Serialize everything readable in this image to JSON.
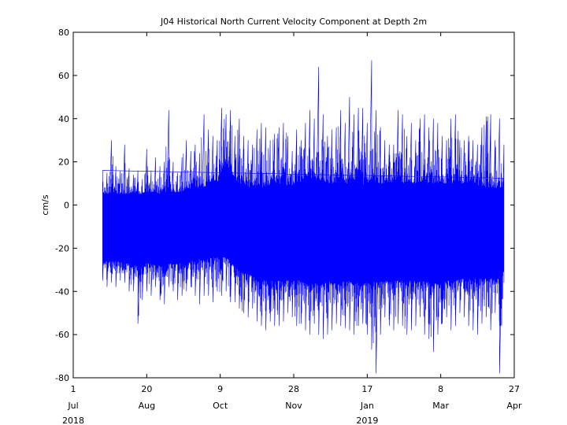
{
  "chart_data": {
    "type": "line",
    "title": "J04 Historical North Current Velocity Component at Depth 2m",
    "ylabel": "cm/s",
    "xlabel": "",
    "ylim": [
      -80,
      80
    ],
    "yticks": [
      -80,
      -60,
      -40,
      -20,
      0,
      20,
      40,
      60,
      80
    ],
    "xlim": [
      "2018-07-01",
      "2019-04-27"
    ],
    "grid": false,
    "xticks": [
      {
        "date": "2018-07-01",
        "day": "1",
        "month": "Jul",
        "year": "2018"
      },
      {
        "date": "2018-08-20",
        "day": "20",
        "month": "Aug",
        "year": ""
      },
      {
        "date": "2018-10-09",
        "day": "9",
        "month": "Oct",
        "year": ""
      },
      {
        "date": "2018-11-28",
        "day": "28",
        "month": "Nov",
        "year": ""
      },
      {
        "date": "2019-01-17",
        "day": "17",
        "month": "Jan",
        "year": "2019"
      },
      {
        "date": "2019-03-08",
        "day": "8",
        "month": "Mar",
        "year": ""
      },
      {
        "date": "2019-04-27",
        "day": "27",
        "month": "Apr",
        "year": ""
      }
    ],
    "series": [
      {
        "color": "#0000ff",
        "resolution": "envelope at ~3-day intervals; underlying data is a dense high-frequency time series",
        "x": [
          "2018-07-21",
          "2018-07-24",
          "2018-07-27",
          "2018-07-30",
          "2018-08-02",
          "2018-08-05",
          "2018-08-08",
          "2018-08-11",
          "2018-08-14",
          "2018-08-17",
          "2018-08-20",
          "2018-08-23",
          "2018-08-26",
          "2018-08-29",
          "2018-09-01",
          "2018-09-04",
          "2018-09-07",
          "2018-09-10",
          "2018-09-13",
          "2018-09-16",
          "2018-09-19",
          "2018-09-22",
          "2018-09-25",
          "2018-09-28",
          "2018-10-01",
          "2018-10-04",
          "2018-10-07",
          "2018-10-10",
          "2018-10-13",
          "2018-10-16",
          "2018-10-19",
          "2018-10-22",
          "2018-10-25",
          "2018-10-28",
          "2018-10-31",
          "2018-11-03",
          "2018-11-06",
          "2018-11-09",
          "2018-11-12",
          "2018-11-15",
          "2018-11-18",
          "2018-11-21",
          "2018-11-24",
          "2018-11-27",
          "2018-11-30",
          "2018-12-03",
          "2018-12-06",
          "2018-12-09",
          "2018-12-12",
          "2018-12-15",
          "2018-12-18",
          "2018-12-21",
          "2018-12-24",
          "2018-12-27",
          "2018-12-30",
          "2019-01-02",
          "2019-01-05",
          "2019-01-08",
          "2019-01-11",
          "2019-01-14",
          "2019-01-17",
          "2019-01-20",
          "2019-01-23",
          "2019-01-26",
          "2019-01-29",
          "2019-02-01",
          "2019-02-04",
          "2019-02-07",
          "2019-02-10",
          "2019-02-13",
          "2019-02-16",
          "2019-02-19",
          "2019-02-22",
          "2019-02-25",
          "2019-02-28",
          "2019-03-03",
          "2019-03-06",
          "2019-03-09",
          "2019-03-12",
          "2019-03-15",
          "2019-03-18",
          "2019-03-21",
          "2019-03-24",
          "2019-03-27",
          "2019-03-30",
          "2019-04-02",
          "2019-04-05",
          "2019-04-08",
          "2019-04-11",
          "2019-04-14",
          "2019-04-17",
          "2019-04-20"
        ],
        "max": [
          16,
          15,
          30,
          18,
          16,
          28,
          17,
          14,
          16,
          12,
          26,
          16,
          22,
          18,
          20,
          44,
          20,
          15,
          22,
          30,
          25,
          28,
          24,
          42,
          35,
          32,
          30,
          45,
          42,
          44,
          32,
          40,
          32,
          30,
          28,
          35,
          38,
          36,
          30,
          33,
          36,
          38,
          32,
          25,
          35,
          30,
          38,
          44,
          40,
          64,
          42,
          32,
          35,
          36,
          44,
          38,
          50,
          42,
          45,
          45,
          38,
          67,
          44,
          36,
          30,
          28,
          28,
          44,
          42,
          32,
          38,
          30,
          40,
          42,
          36,
          40,
          38,
          32,
          30,
          40,
          42,
          30,
          30,
          32,
          30,
          28,
          36,
          41,
          42,
          30,
          40,
          28
        ],
        "min": [
          -35,
          -38,
          -36,
          -38,
          -35,
          -36,
          -40,
          -40,
          -55,
          -44,
          -40,
          -42,
          -38,
          -44,
          -46,
          -38,
          -40,
          -44,
          -42,
          -40,
          -38,
          -42,
          -46,
          -42,
          -42,
          -45,
          -40,
          -42,
          -40,
          -45,
          -45,
          -48,
          -50,
          -52,
          -48,
          -54,
          -56,
          -58,
          -54,
          -56,
          -56,
          -54,
          -50,
          -52,
          -56,
          -55,
          -58,
          -60,
          -55,
          -60,
          -62,
          -60,
          -58,
          -55,
          -56,
          -57,
          -58,
          -60,
          -56,
          -55,
          -60,
          -67,
          -78,
          -60,
          -52,
          -56,
          -58,
          -55,
          -56,
          -60,
          -58,
          -56,
          -52,
          -60,
          -62,
          -68,
          -60,
          -55,
          -52,
          -58,
          -56,
          -50,
          -52,
          -56,
          -58,
          -60,
          -55,
          -52,
          -58,
          -50,
          -78,
          -36
        ],
        "upper_band": [
          5,
          5,
          6,
          5,
          5,
          5,
          5,
          6,
          5,
          5,
          6,
          6,
          6,
          5,
          6,
          6,
          5,
          6,
          6,
          6,
          7,
          8,
          8,
          8,
          10,
          12,
          10,
          16,
          18,
          14,
          12,
          10,
          10,
          8,
          9,
          8,
          8,
          8,
          9,
          10,
          10,
          10,
          9,
          9,
          10,
          10,
          11,
          12,
          12,
          12,
          10,
          10,
          10,
          10,
          10,
          10,
          10,
          12,
          10,
          9,
          10,
          10,
          10,
          10,
          10,
          10,
          10,
          10,
          10,
          10,
          10,
          10,
          10,
          10,
          10,
          10,
          10,
          10,
          10,
          10,
          10,
          10,
          10,
          10,
          10,
          8,
          8,
          8,
          8,
          8,
          8,
          6
        ],
        "lower_band": [
          -25,
          -26,
          -26,
          -26,
          -26,
          -27,
          -27,
          -28,
          -28,
          -28,
          -27,
          -27,
          -28,
          -28,
          -28,
          -27,
          -27,
          -27,
          -27,
          -27,
          -26,
          -26,
          -25,
          -25,
          -25,
          -24,
          -24,
          -24,
          -24,
          -26,
          -28,
          -30,
          -31,
          -32,
          -32,
          -33,
          -34,
          -34,
          -35,
          -35,
          -35,
          -35,
          -35,
          -35,
          -35,
          -35,
          -36,
          -36,
          -36,
          -36,
          -36,
          -36,
          -35,
          -35,
          -35,
          -35,
          -35,
          -36,
          -36,
          -36,
          -36,
          -36,
          -35,
          -35,
          -35,
          -35,
          -35,
          -35,
          -35,
          -35,
          -35,
          -35,
          -35,
          -35,
          -35,
          -36,
          -36,
          -35,
          -35,
          -35,
          -35,
          -34,
          -34,
          -34,
          -34,
          -34,
          -34,
          -34,
          -34,
          -34,
          -34,
          -30
        ]
      }
    ]
  }
}
